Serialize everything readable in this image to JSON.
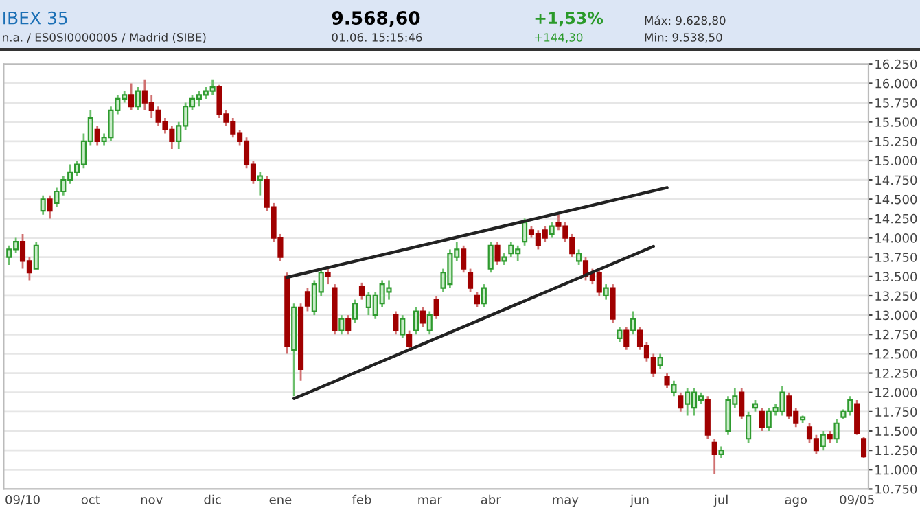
{
  "chart_data": {
    "type": "candlestick",
    "title": "IBEX 35",
    "subtitle": "n.a. / ES0SI0000005 / Madrid (SIBE)",
    "annotations": [
      "9.568,60",
      "01.06. 15:15:46",
      "+1,53%",
      "+144,30",
      "Máx: 9.628,80",
      "Min: 9.538,50"
    ],
    "categories": [
      null,
      null,
      "09/10",
      null,
      null,
      null,
      null,
      null,
      null,
      null,
      null,
      null,
      "oct",
      null,
      null,
      null,
      null,
      null,
      null,
      null,
      null,
      "nov",
      null,
      null,
      null,
      null,
      null,
      null,
      null,
      null,
      "dic",
      null,
      null,
      null,
      null,
      null,
      null,
      null,
      null,
      null,
      "ene",
      null,
      null,
      null,
      null,
      null,
      null,
      null,
      null,
      null,
      null,
      null,
      "feb",
      null,
      null,
      null,
      null,
      null,
      null,
      null,
      null,
      null,
      "mar",
      null,
      null,
      null,
      null,
      null,
      null,
      null,
      null,
      "abr",
      null,
      null,
      null,
      null,
      null,
      null,
      null,
      null,
      null,
      null,
      "may",
      null,
      null,
      null,
      null,
      null,
      null,
      null,
      null,
      null,
      null,
      "jun",
      null,
      null,
      null,
      null,
      null,
      null,
      null,
      null,
      null,
      null,
      null,
      "jul",
      null,
      null,
      null,
      null,
      null,
      null,
      null,
      null,
      null,
      null,
      "ago",
      null,
      null,
      null,
      null,
      null,
      null,
      null,
      null,
      "09/05",
      null
    ],
    "ohlc": [
      [
        13750,
        13900,
        13650,
        13850
      ],
      [
        13850,
        14000,
        13800,
        13950
      ],
      [
        13950,
        14050,
        13600,
        13700
      ],
      [
        13700,
        13750,
        13450,
        13550
      ],
      [
        13600,
        13950,
        13600,
        13900
      ],
      [
        14350,
        14550,
        14300,
        14500
      ],
      [
        14500,
        14550,
        14250,
        14350
      ],
      [
        14450,
        14650,
        14400,
        14600
      ],
      [
        14600,
        14800,
        14550,
        14750
      ],
      [
        14750,
        14950,
        14700,
        14850
      ],
      [
        14850,
        15000,
        14800,
        14950
      ],
      [
        14950,
        15350,
        14900,
        15250
      ],
      [
        15250,
        15650,
        15200,
        15550
      ],
      [
        15400,
        15450,
        15200,
        15250
      ],
      [
        15250,
        15350,
        15200,
        15300
      ],
      [
        15300,
        15700,
        15250,
        15650
      ],
      [
        15650,
        15850,
        15600,
        15800
      ],
      [
        15800,
        15900,
        15750,
        15850
      ],
      [
        15850,
        16000,
        15650,
        15700
      ],
      [
        15700,
        15950,
        15650,
        15900
      ],
      [
        15900,
        16050,
        15650,
        15750
      ],
      [
        15750,
        15850,
        15550,
        15650
      ],
      [
        15650,
        15700,
        15450,
        15500
      ],
      [
        15500,
        15550,
        15350,
        15400
      ],
      [
        15400,
        15450,
        15150,
        15250
      ],
      [
        15250,
        15500,
        15150,
        15450
      ],
      [
        15450,
        15750,
        15400,
        15700
      ],
      [
        15700,
        15850,
        15650,
        15800
      ],
      [
        15800,
        15900,
        15700,
        15850
      ],
      [
        15850,
        15950,
        15800,
        15900
      ],
      [
        15900,
        16050,
        15850,
        15950
      ],
      [
        15950,
        15980,
        15550,
        15600
      ],
      [
        15600,
        15650,
        15450,
        15500
      ],
      [
        15500,
        15550,
        15300,
        15350
      ],
      [
        15350,
        15400,
        15200,
        15250
      ],
      [
        15250,
        15300,
        14900,
        14950
      ],
      [
        14950,
        15000,
        14700,
        14750
      ],
      [
        14750,
        14850,
        14550,
        14800
      ],
      [
        14750,
        14800,
        14350,
        14400
      ],
      [
        14400,
        14450,
        13950,
        14000
      ],
      [
        14000,
        14050,
        13700,
        13750
      ],
      [
        13500,
        13550,
        12500,
        12600
      ],
      [
        12550,
        13150,
        11950,
        13100
      ],
      [
        13100,
        13150,
        12150,
        12300
      ],
      [
        13300,
        13350,
        13050,
        13120
      ],
      [
        13050,
        13450,
        13000,
        13400
      ],
      [
        13300,
        13600,
        13250,
        13550
      ],
      [
        13550,
        13600,
        13400,
        13500
      ],
      [
        13350,
        13400,
        12750,
        12800
      ],
      [
        12800,
        13000,
        12750,
        12950
      ],
      [
        12950,
        13000,
        12750,
        12800
      ],
      [
        12950,
        13200,
        12900,
        13150
      ],
      [
        13370,
        13420,
        13200,
        13250
      ],
      [
        13100,
        13300,
        13000,
        13250
      ],
      [
        13000,
        13300,
        12950,
        13250
      ],
      [
        13150,
        13450,
        13100,
        13400
      ],
      [
        13300,
        13450,
        13200,
        13350
      ],
      [
        13000,
        13050,
        12750,
        12800
      ],
      [
        12750,
        13000,
        12700,
        12950
      ],
      [
        12750,
        12800,
        12550,
        12600
      ],
      [
        12800,
        13100,
        12750,
        13050
      ],
      [
        13050,
        13100,
        12850,
        12900
      ],
      [
        12800,
        13050,
        12750,
        13000
      ],
      [
        13200,
        13250,
        12950,
        13000
      ],
      [
        13350,
        13600,
        13300,
        13550
      ],
      [
        13400,
        13850,
        13350,
        13800
      ],
      [
        13750,
        13950,
        13700,
        13850
      ],
      [
        13850,
        13900,
        13550,
        13600
      ],
      [
        13550,
        13600,
        13300,
        13350
      ],
      [
        13250,
        13300,
        13100,
        13150
      ],
      [
        13150,
        13400,
        13100,
        13350
      ],
      [
        13600,
        13950,
        13550,
        13900
      ],
      [
        13900,
        13950,
        13650,
        13700
      ],
      [
        13700,
        13800,
        13650,
        13750
      ],
      [
        13800,
        13950,
        13750,
        13900
      ],
      [
        13800,
        13900,
        13700,
        13850
      ],
      [
        13950,
        14250,
        13900,
        14200
      ],
      [
        14100,
        14150,
        14000,
        14050
      ],
      [
        14050,
        14100,
        13850,
        13900
      ],
      [
        14100,
        14150,
        13950,
        14000
      ],
      [
        14050,
        14200,
        14000,
        14150
      ],
      [
        14200,
        14300,
        14100,
        14150
      ],
      [
        14150,
        14200,
        13950,
        14000
      ],
      [
        14000,
        14050,
        13750,
        13800
      ],
      [
        13700,
        13850,
        13650,
        13800
      ],
      [
        13700,
        13750,
        13450,
        13500
      ],
      [
        13550,
        13600,
        13400,
        13450
      ],
      [
        13550,
        13600,
        13250,
        13300
      ],
      [
        13250,
        13400,
        13200,
        13350
      ],
      [
        13350,
        13400,
        12900,
        12950
      ],
      [
        12700,
        12850,
        12650,
        12800
      ],
      [
        12800,
        12850,
        12550,
        12600
      ],
      [
        12800,
        13050,
        12750,
        12950
      ],
      [
        12800,
        12850,
        12550,
        12600
      ],
      [
        12600,
        12650,
        12400,
        12450
      ],
      [
        12450,
        12500,
        12200,
        12250
      ],
      [
        12350,
        12500,
        12300,
        12450
      ],
      [
        12200,
        12250,
        12050,
        12100
      ],
      [
        12000,
        12150,
        11950,
        12100
      ],
      [
        11950,
        12000,
        11750,
        11800
      ],
      [
        11850,
        12050,
        11700,
        12000
      ],
      [
        11800,
        12050,
        11700,
        12000
      ],
      [
        11900,
        12000,
        11850,
        11950
      ],
      [
        11900,
        11950,
        11400,
        11450
      ],
      [
        11350,
        11400,
        10950,
        11200
      ],
      [
        11200,
        11300,
        11150,
        11250
      ],
      [
        11500,
        11950,
        11450,
        11900
      ],
      [
        11850,
        12050,
        11800,
        11950
      ],
      [
        12000,
        12050,
        11650,
        11700
      ],
      [
        11400,
        11750,
        11350,
        11700
      ],
      [
        11800,
        11900,
        11750,
        11850
      ],
      [
        11750,
        11800,
        11500,
        11550
      ],
      [
        11550,
        11800,
        11500,
        11750
      ],
      [
        11750,
        11850,
        11700,
        11800
      ],
      [
        11750,
        12080,
        11700,
        12000
      ],
      [
        11950,
        12000,
        11650,
        11700
      ],
      [
        11750,
        11800,
        11550,
        11600
      ],
      [
        11650,
        11700,
        11600,
        11680
      ],
      [
        11550,
        11600,
        11350,
        11400
      ],
      [
        11400,
        11450,
        11200,
        11250
      ],
      [
        11300,
        11500,
        11250,
        11450
      ],
      [
        11450,
        11500,
        11350,
        11400
      ],
      [
        11400,
        11650,
        11350,
        11600
      ],
      [
        11680,
        11780,
        11650,
        11750
      ],
      [
        11750,
        11950,
        11700,
        11900
      ],
      [
        11850,
        11900,
        11450,
        11470
      ],
      [
        11400,
        11420,
        11150,
        11170
      ]
    ],
    "series": [
      {
        "type": "line",
        "color": "#222222",
        "values": [
          null,
          null,
          null,
          null,
          null,
          null,
          null,
          null,
          null,
          null,
          null,
          null,
          null,
          null,
          null,
          null,
          null,
          null,
          null,
          null,
          null,
          null,
          null,
          null,
          null,
          null,
          null,
          null,
          null,
          null,
          null,
          null,
          null,
          null,
          null,
          null,
          null,
          null,
          null,
          null,
          null,
          13490,
          null,
          null,
          null,
          null,
          null,
          null,
          null,
          null,
          null,
          null,
          null,
          null,
          null,
          null,
          null,
          null,
          null,
          null,
          null,
          null,
          null,
          null,
          null,
          null,
          null,
          null,
          null,
          null,
          null,
          null,
          null,
          null,
          null,
          null,
          null,
          null,
          null,
          null,
          null,
          null,
          null,
          null,
          null,
          null,
          null,
          null,
          null,
          null,
          null,
          null,
          null,
          null,
          null,
          null,
          null,
          14650,
          null,
          null,
          null,
          null,
          null,
          null,
          null,
          null,
          null,
          null,
          null,
          null,
          null,
          null,
          null,
          null,
          null,
          null,
          null,
          null,
          null,
          null,
          null,
          null,
          null,
          null,
          null,
          null,
          null
        ]
      },
      {
        "type": "line",
        "color": "#222222",
        "values": [
          null,
          null,
          null,
          null,
          null,
          null,
          null,
          null,
          null,
          null,
          null,
          null,
          null,
          null,
          null,
          null,
          null,
          null,
          null,
          null,
          null,
          null,
          null,
          null,
          null,
          null,
          null,
          null,
          null,
          null,
          null,
          null,
          null,
          null,
          null,
          null,
          null,
          null,
          null,
          null,
          null,
          null,
          11920,
          null,
          null,
          null,
          null,
          null,
          null,
          null,
          null,
          null,
          null,
          null,
          null,
          null,
          null,
          null,
          null,
          null,
          null,
          null,
          null,
          null,
          null,
          null,
          null,
          null,
          null,
          null,
          null,
          null,
          null,
          null,
          null,
          null,
          null,
          null,
          null,
          null,
          null,
          null,
          null,
          null,
          null,
          null,
          null,
          null,
          null,
          null,
          null,
          null,
          null,
          null,
          null,
          13890,
          null,
          null,
          null,
          null,
          null,
          null,
          null,
          null,
          null,
          null,
          null,
          null,
          null,
          null,
          null,
          null,
          null,
          null,
          null,
          null,
          null,
          null,
          null,
          null,
          null,
          null,
          null,
          null,
          null,
          null,
          null
        ]
      }
    ],
    "ylim": [
      10750,
      16250
    ],
    "yticks": [
      {
        "value": 10750,
        "label": "10.750"
      },
      {
        "value": 11000,
        "label": "11.000"
      },
      {
        "value": 11250,
        "label": "11.250"
      },
      {
        "value": 11500,
        "label": "11.500"
      },
      {
        "value": 11750,
        "label": "11.750"
      },
      {
        "value": 12000,
        "label": "12.000"
      },
      {
        "value": 12250,
        "label": "12.250"
      },
      {
        "value": 12500,
        "label": "12.500"
      },
      {
        "value": 12750,
        "label": "12.750"
      },
      {
        "value": 13000,
        "label": "13.000"
      },
      {
        "value": 13250,
        "label": "13.250"
      },
      {
        "value": 13500,
        "label": "13.500"
      },
      {
        "value": 13750,
        "label": "13.750"
      },
      {
        "value": 14000,
        "label": "14.000"
      },
      {
        "value": 14250,
        "label": "14.250"
      },
      {
        "value": 14500,
        "label": "14.500"
      },
      {
        "value": 14750,
        "label": "14.750"
      },
      {
        "value": 15000,
        "label": "15.000"
      },
      {
        "value": 15250,
        "label": "15.250"
      },
      {
        "value": 15500,
        "label": "15.500"
      },
      {
        "value": 15750,
        "label": "15.750"
      },
      {
        "value": 16000,
        "label": "16.000"
      },
      {
        "value": 16250,
        "label": "16.250"
      }
    ],
    "grid": "y",
    "legend": false
  }
}
